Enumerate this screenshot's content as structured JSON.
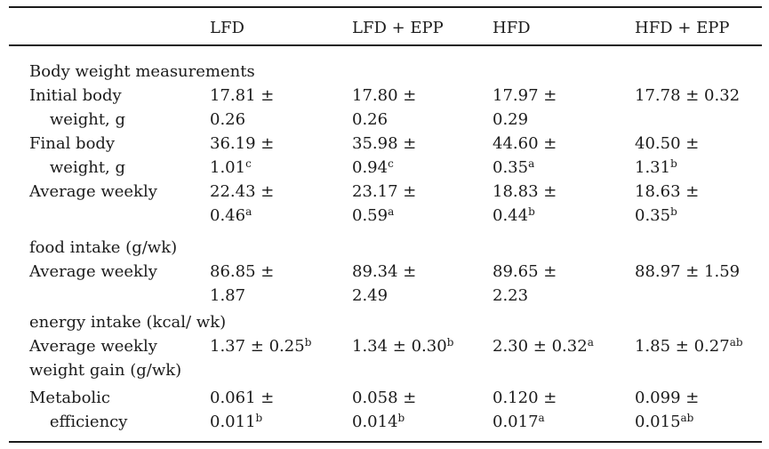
{
  "colors": {
    "background": "#ffffff",
    "text": "#1b1b1b",
    "rule": "#1b1b1b"
  },
  "table": {
    "sup_marker": "^",
    "plus_minus": "±",
    "columns": [
      "",
      "LFD",
      "LFD + EPP",
      "HFD",
      "HFD + EPP"
    ],
    "rows": [
      {
        "section": true,
        "label_lines": [
          "Body weight measurements"
        ],
        "values": [
          [],
          [],
          [],
          []
        ]
      },
      {
        "label_lines": [
          "Initial body",
          "    weight, g"
        ],
        "values": [
          [
            "17.81 ±",
            "0.26"
          ],
          [
            "17.80 ±",
            "0.26"
          ],
          [
            "17.97 ±",
            "0.29"
          ],
          [
            "17.78 ± 0.32"
          ]
        ]
      },
      {
        "label_lines": [
          "Final body",
          "    weight, g"
        ],
        "values": [
          [
            "36.19 ±",
            "1.01^c"
          ],
          [
            "35.98 ±",
            "0.94^c"
          ],
          [
            "44.60 ±",
            "0.35^a"
          ],
          [
            "40.50 ±",
            "1.31^b"
          ]
        ]
      },
      {
        "label_lines": [
          "Average weekly",
          "",
          "food intake (g/wk)"
        ],
        "values": [
          [
            "22.43 ±",
            "0.46^a"
          ],
          [
            "23.17 ±",
            "0.59^a"
          ],
          [
            "18.83 ±",
            "0.44^b"
          ],
          [
            "18.63 ±",
            "0.35^b"
          ]
        ]
      },
      {
        "label_lines": [
          "Average weekly",
          "",
          "energy intake (kcal/ wk)"
        ],
        "values": [
          [
            "86.85 ±",
            "1.87"
          ],
          [
            "89.34 ±",
            "2.49"
          ],
          [
            "89.65 ±",
            "2.23"
          ],
          [
            "88.97 ± 1.59"
          ]
        ]
      },
      {
        "label_lines": [
          "Average weekly",
          "weight gain (g/wk)"
        ],
        "values": [
          [
            "1.37 ± 0.25^b"
          ],
          [
            "1.34 ± 0.30^b"
          ],
          [
            "2.30 ± 0.32^a"
          ],
          [
            "1.85 ± 0.27^ab"
          ]
        ]
      },
      {
        "label_lines": [
          "Metabolic",
          "    efficiency"
        ],
        "values": [
          [
            "0.061 ±",
            "0.011^b"
          ],
          [
            "0.058 ±",
            "0.014^b"
          ],
          [
            "0.120 ±",
            "0.017^a"
          ],
          [
            "0.099 ±",
            "0.015^ab"
          ]
        ]
      }
    ]
  }
}
